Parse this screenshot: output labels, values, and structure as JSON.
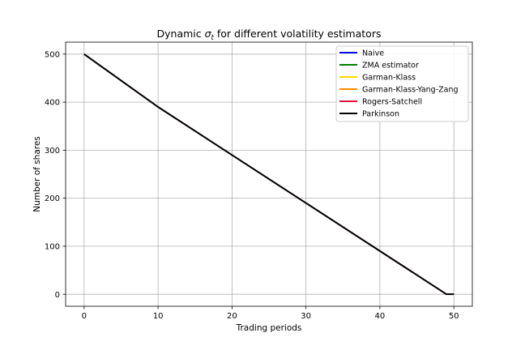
{
  "chart_data": {
    "type": "line",
    "title_prefix": "Dynamic ",
    "title_symbol": "σ",
    "title_subscript": "t",
    "title_suffix": " for different volatility estimators",
    "xlabel": "Trading periods",
    "ylabel": "Number of shares",
    "xlim": [
      -2.5,
      52.5
    ],
    "ylim": [
      -25,
      525
    ],
    "xticks": [
      0,
      10,
      20,
      30,
      40,
      50
    ],
    "yticks": [
      0,
      100,
      200,
      300,
      400,
      500
    ],
    "grid": true,
    "legend_position": "top-right",
    "x": [
      0,
      10,
      49,
      50
    ],
    "series": [
      {
        "name": "Naive",
        "color": "#0000ff",
        "values": [
          500,
          390,
          0,
          0
        ]
      },
      {
        "name": "ZMA estimator",
        "color": "#008000",
        "values": [
          500,
          390,
          0,
          0
        ]
      },
      {
        "name": "Garman-Klass",
        "color": "#ffd700",
        "values": [
          500,
          390,
          0,
          0
        ]
      },
      {
        "name": "Garman-Klass-Yang-Zang",
        "color": "#ff8c00",
        "values": [
          500,
          390,
          0,
          0
        ]
      },
      {
        "name": "Rogers-Satchell",
        "color": "#dc143c",
        "values": [
          500,
          390,
          0,
          0
        ]
      },
      {
        "name": "Parkinson",
        "color": "#000000",
        "values": [
          500,
          390,
          0,
          0
        ]
      }
    ]
  }
}
